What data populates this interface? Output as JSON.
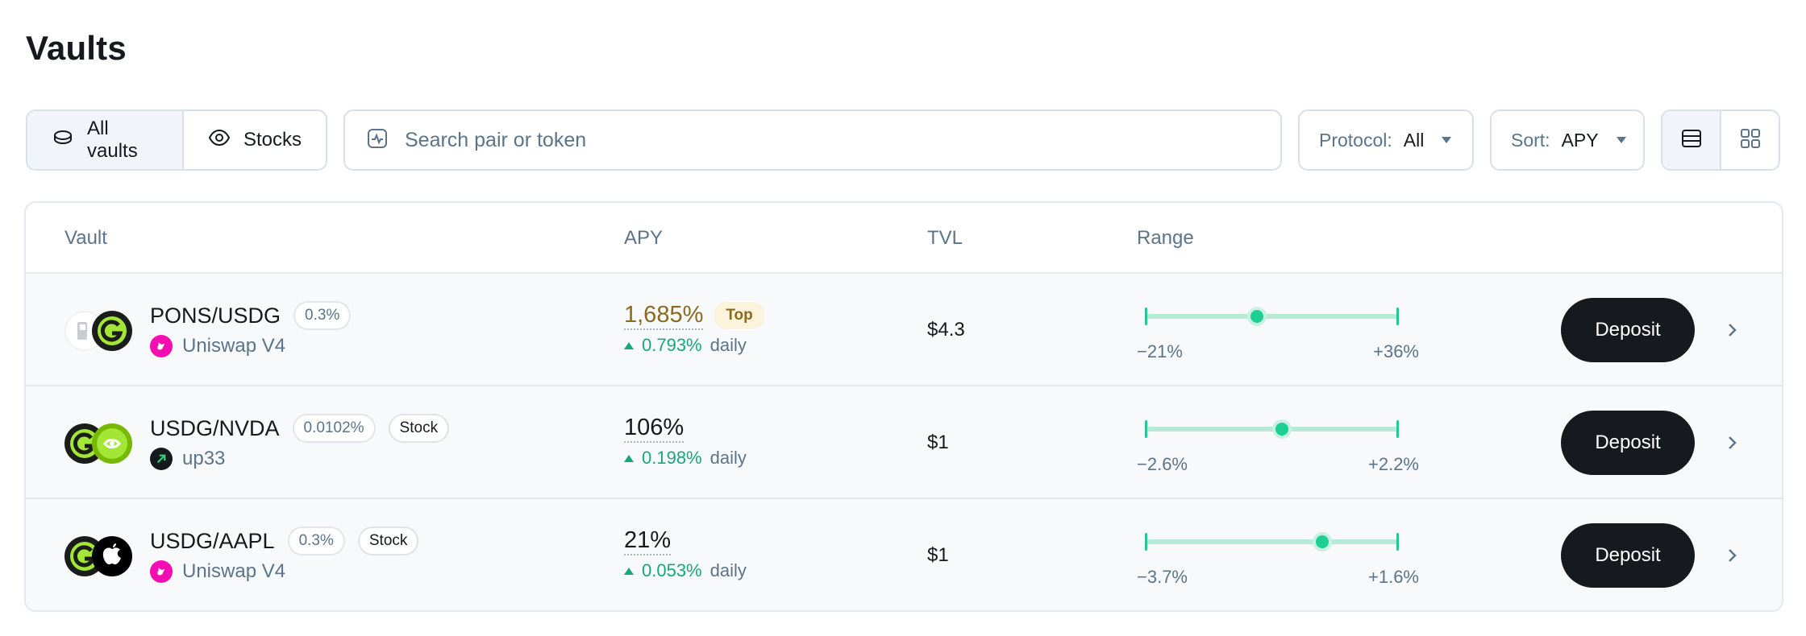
{
  "page": {
    "title": "Vaults"
  },
  "filters": {
    "all_vaults_label": "All vaults",
    "stocks_label": "Stocks",
    "search_placeholder": "Search pair or token",
    "protocol_label": "Protocol:",
    "protocol_value": "All",
    "sort_label": "Sort:",
    "sort_value": "APY"
  },
  "table": {
    "headers": {
      "vault": "Vault",
      "apy": "APY",
      "tvl": "TVL",
      "range": "Range"
    },
    "rows": [
      {
        "pair": "PONS/USDG",
        "fee": "0.3%",
        "stock_badge": "",
        "protocol": "Uniswap V4",
        "protocol_icon": "uniswap-icon",
        "token_a_icon": "pons-token-icon",
        "token_b_icon": "usdg-token-icon",
        "apy": "1,685%",
        "top_badge": "Top",
        "daily": "0.793%",
        "daily_label": "daily",
        "tvl": "$4.3",
        "range_low": "−21%",
        "range_high": "+36%",
        "range_position": 0.44,
        "deposit_label": "Deposit"
      },
      {
        "pair": "USDG/NVDA",
        "fee": "0.0102%",
        "stock_badge": "Stock",
        "protocol": "up33",
        "protocol_icon": "up33-icon",
        "token_a_icon": "usdg-token-icon",
        "token_b_icon": "nvda-token-icon",
        "apy": "106%",
        "top_badge": "",
        "daily": "0.198%",
        "daily_label": "daily",
        "tvl": "$1",
        "range_low": "−2.6%",
        "range_high": "+2.2%",
        "range_position": 0.54,
        "deposit_label": "Deposit"
      },
      {
        "pair": "USDG/AAPL",
        "fee": "0.3%",
        "stock_badge": "Stock",
        "protocol": "Uniswap V4",
        "protocol_icon": "uniswap-icon",
        "token_a_icon": "usdg-token-icon",
        "token_b_icon": "aapl-token-icon",
        "apy": "21%",
        "top_badge": "",
        "daily": "0.053%",
        "daily_label": "daily",
        "tvl": "$1",
        "range_low": "−3.7%",
        "range_high": "+1.6%",
        "range_position": 0.7,
        "deposit_label": "Deposit"
      }
    ]
  },
  "colors": {
    "accent_green": "#1aa67c",
    "range_knob": "#1dcf93",
    "range_track": "#b6ebd8",
    "top_badge_text": "#8a6a1f",
    "top_badge_bg": "#fbf3dc",
    "deposit_bg": "#16191d",
    "muted_text": "#5b7489",
    "uniswap_pink": "#f50db4",
    "usdg_green": "#a3e635"
  }
}
